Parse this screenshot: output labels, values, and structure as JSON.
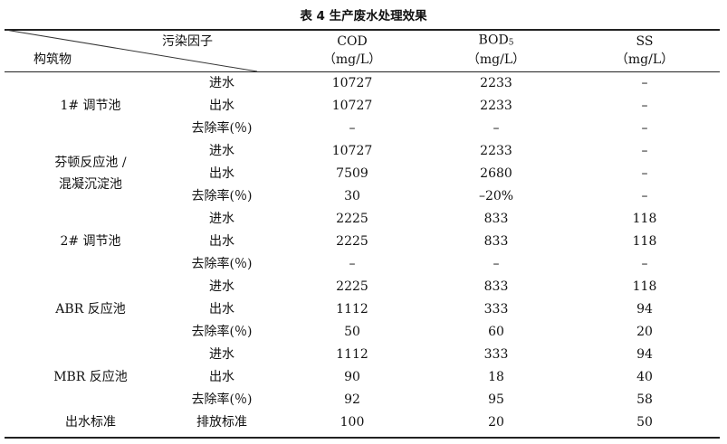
{
  "title": "表 4  生产废水处理效果",
  "header": {
    "corner_top": "污染因子",
    "corner_bottom": "构筑物",
    "columns": [
      {
        "name": "COD",
        "sub": "",
        "unit": "（mg/L）"
      },
      {
        "name": "BOD",
        "sub": "5",
        "unit": "（mg/L）"
      },
      {
        "name": "SS",
        "sub": "",
        "unit": "（mg/L）"
      }
    ]
  },
  "groups": [
    {
      "label": "1# 调节池",
      "rows": [
        {
          "item": "进水",
          "values": [
            "10727",
            "2233",
            "–"
          ]
        },
        {
          "item": "出水",
          "values": [
            "10727",
            "2233",
            "–"
          ]
        },
        {
          "item": "去除率(％)",
          "values": [
            "–",
            "–",
            "–"
          ]
        }
      ]
    },
    {
      "label": "芬顿反应池 /\n混凝沉淀池",
      "rows": [
        {
          "item": "进水",
          "values": [
            "10727",
            "2233",
            "–"
          ]
        },
        {
          "item": "出水",
          "values": [
            "7509",
            "2680",
            "–"
          ]
        },
        {
          "item": "去除率(％)",
          "values": [
            "30",
            "–20%",
            "–"
          ]
        }
      ]
    },
    {
      "label": "2# 调节池",
      "rows": [
        {
          "item": "进水",
          "values": [
            "2225",
            "833",
            "118"
          ]
        },
        {
          "item": "出水",
          "values": [
            "2225",
            "833",
            "118"
          ]
        },
        {
          "item": "去除率(％)",
          "values": [
            "–",
            "–",
            "–"
          ]
        }
      ]
    },
    {
      "label": "ABR 反应池",
      "rows": [
        {
          "item": "进水",
          "values": [
            "2225",
            "833",
            "118"
          ]
        },
        {
          "item": "出水",
          "values": [
            "1112",
            "333",
            "94"
          ]
        },
        {
          "item": "去除率(％)",
          "values": [
            "50",
            "60",
            "20"
          ]
        }
      ]
    },
    {
      "label": "MBR 反应池",
      "rows": [
        {
          "item": "进水",
          "values": [
            "1112",
            "333",
            "94"
          ]
        },
        {
          "item": "出水",
          "values": [
            "90",
            "18",
            "40"
          ]
        },
        {
          "item": "去除率(％)",
          "values": [
            "92",
            "95",
            "58"
          ]
        }
      ]
    },
    {
      "label": "出水标准",
      "rows": [
        {
          "item": "排放标准",
          "values": [
            "100",
            "20",
            "50"
          ]
        }
      ]
    }
  ]
}
